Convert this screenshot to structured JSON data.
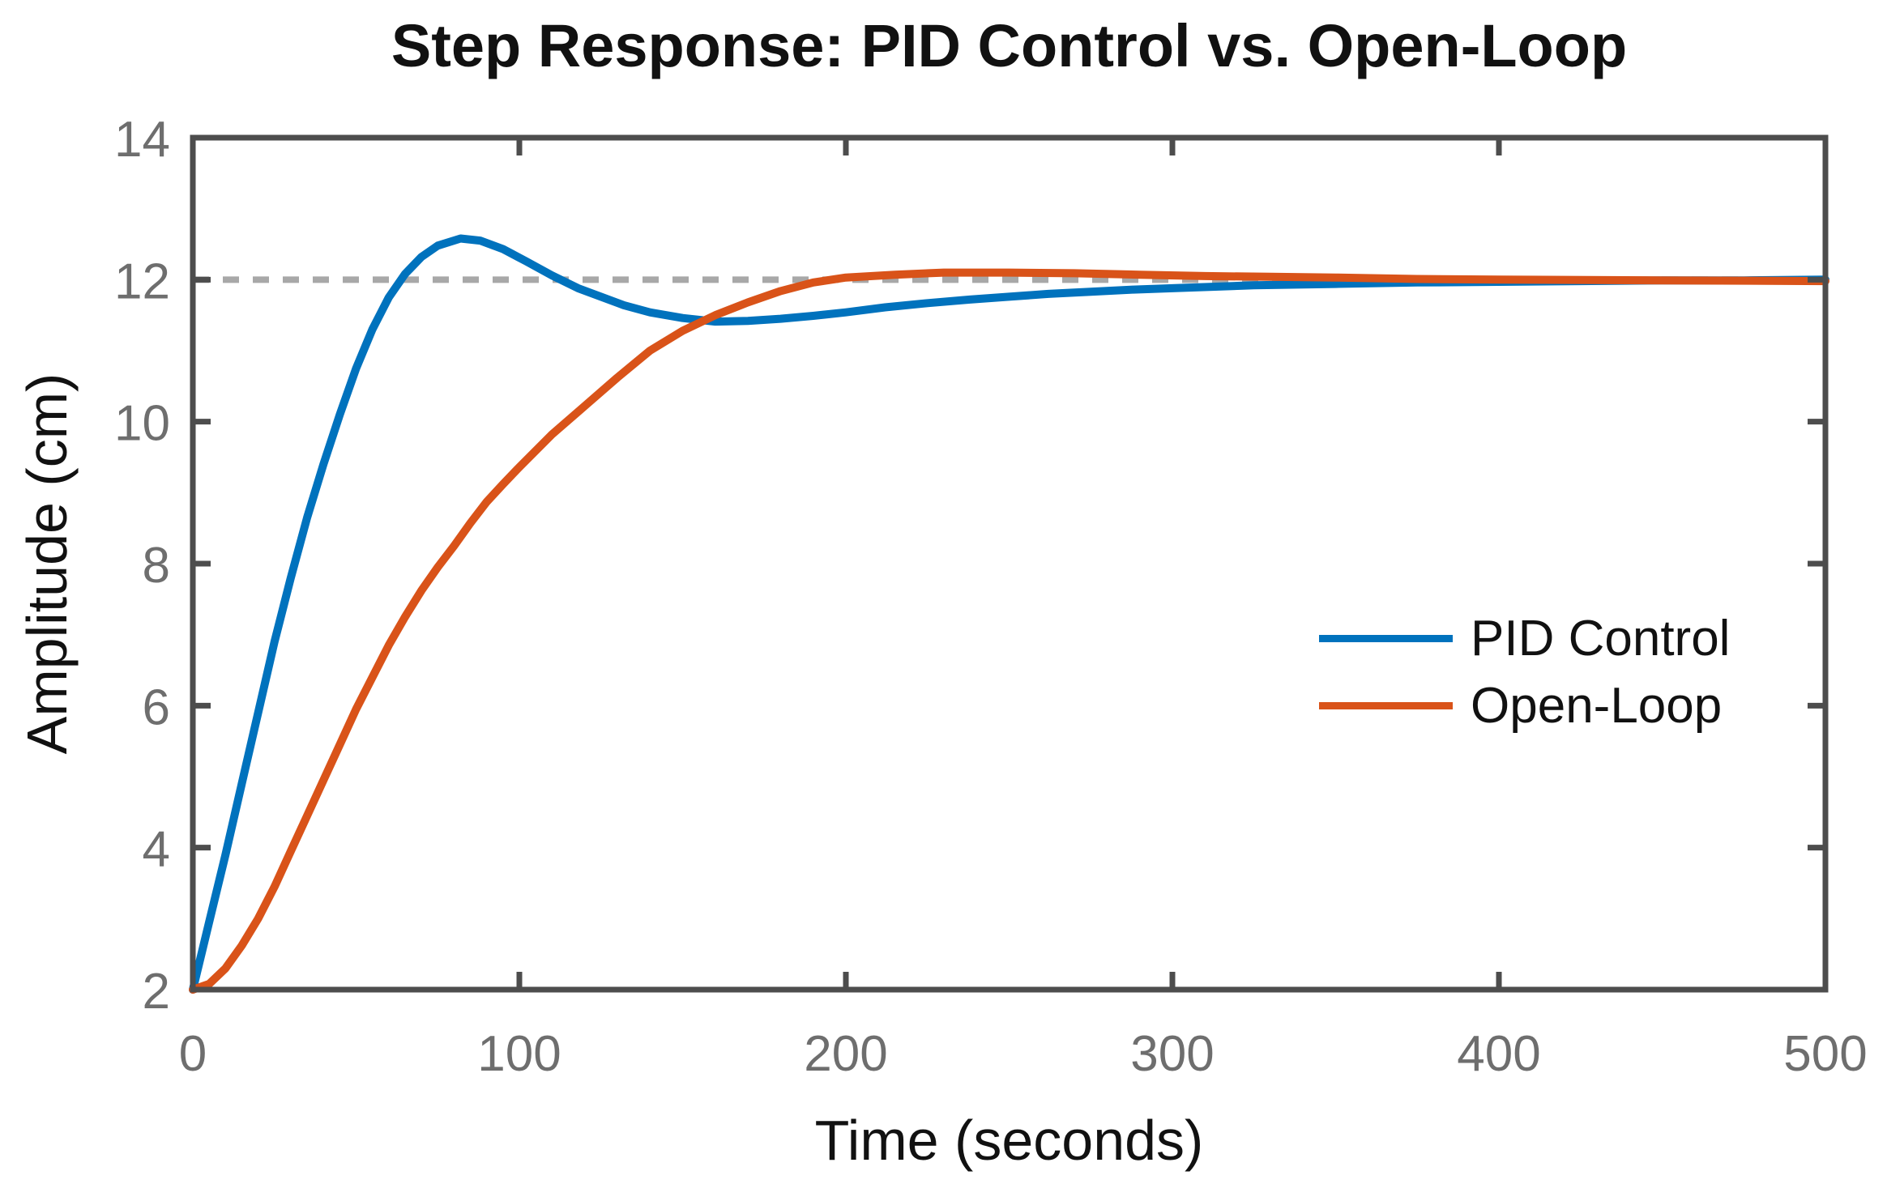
{
  "chart_data": {
    "type": "line",
    "title": "Step Response: PID Control vs. Open-Loop",
    "xlabel": "Time (seconds)",
    "ylabel": "Amplitude (cm)",
    "xlim": [
      0,
      500
    ],
    "ylim": [
      2,
      14
    ],
    "x_ticks": [
      0,
      100,
      200,
      300,
      400,
      500
    ],
    "y_ticks": [
      2,
      4,
      6,
      8,
      10,
      12,
      14
    ],
    "grid": false,
    "legend_position": "middle-right",
    "axis_color": "#4D4D4D",
    "tick_label_color": "#6E6E6E",
    "reference_line": {
      "y": 12,
      "style": "dotted",
      "color": "#A8A8A8"
    },
    "series": [
      {
        "name": "PID Control",
        "color": "#0072BD",
        "points": [
          [
            0,
            2.0
          ],
          [
            5,
            2.95
          ],
          [
            10,
            3.9
          ],
          [
            15,
            4.9
          ],
          [
            20,
            5.9
          ],
          [
            25,
            6.9
          ],
          [
            30,
            7.8
          ],
          [
            35,
            8.65
          ],
          [
            40,
            9.4
          ],
          [
            45,
            10.1
          ],
          [
            50,
            10.75
          ],
          [
            55,
            11.3
          ],
          [
            60,
            11.75
          ],
          [
            65,
            12.08
          ],
          [
            70,
            12.32
          ],
          [
            75,
            12.48
          ],
          [
            82,
            12.58
          ],
          [
            88,
            12.55
          ],
          [
            95,
            12.43
          ],
          [
            102,
            12.26
          ],
          [
            110,
            12.06
          ],
          [
            118,
            11.88
          ],
          [
            125,
            11.76
          ],
          [
            132,
            11.64
          ],
          [
            140,
            11.54
          ],
          [
            150,
            11.46
          ],
          [
            160,
            11.41
          ],
          [
            170,
            11.42
          ],
          [
            180,
            11.45
          ],
          [
            190,
            11.49
          ],
          [
            200,
            11.54
          ],
          [
            212,
            11.61
          ],
          [
            225,
            11.67
          ],
          [
            238,
            11.72
          ],
          [
            250,
            11.76
          ],
          [
            262,
            11.8
          ],
          [
            275,
            11.83
          ],
          [
            288,
            11.86
          ],
          [
            300,
            11.88
          ],
          [
            325,
            11.92
          ],
          [
            350,
            11.94
          ],
          [
            375,
            11.96
          ],
          [
            400,
            11.97
          ],
          [
            425,
            11.98
          ],
          [
            450,
            11.99
          ],
          [
            475,
            11.99
          ],
          [
            500,
            12.0
          ]
        ]
      },
      {
        "name": "Open-Loop",
        "color": "#D95319",
        "points": [
          [
            0,
            2.0
          ],
          [
            5,
            2.08
          ],
          [
            10,
            2.3
          ],
          [
            15,
            2.62
          ],
          [
            20,
            3.0
          ],
          [
            25,
            3.45
          ],
          [
            30,
            3.95
          ],
          [
            35,
            4.45
          ],
          [
            40,
            4.95
          ],
          [
            45,
            5.45
          ],
          [
            50,
            5.95
          ],
          [
            55,
            6.4
          ],
          [
            60,
            6.85
          ],
          [
            65,
            7.25
          ],
          [
            70,
            7.62
          ],
          [
            75,
            7.95
          ],
          [
            80,
            8.25
          ],
          [
            85,
            8.57
          ],
          [
            90,
            8.87
          ],
          [
            95,
            9.12
          ],
          [
            100,
            9.36
          ],
          [
            110,
            9.82
          ],
          [
            120,
            10.22
          ],
          [
            130,
            10.62
          ],
          [
            140,
            11.0
          ],
          [
            150,
            11.28
          ],
          [
            160,
            11.5
          ],
          [
            170,
            11.68
          ],
          [
            180,
            11.84
          ],
          [
            190,
            11.96
          ],
          [
            200,
            12.03
          ],
          [
            215,
            12.07
          ],
          [
            230,
            12.1
          ],
          [
            250,
            12.1
          ],
          [
            270,
            12.09
          ],
          [
            290,
            12.07
          ],
          [
            310,
            12.05
          ],
          [
            330,
            12.04
          ],
          [
            350,
            12.03
          ],
          [
            375,
            12.01
          ],
          [
            400,
            12.0
          ],
          [
            450,
            11.99
          ],
          [
            500,
            11.98
          ]
        ]
      }
    ]
  }
}
